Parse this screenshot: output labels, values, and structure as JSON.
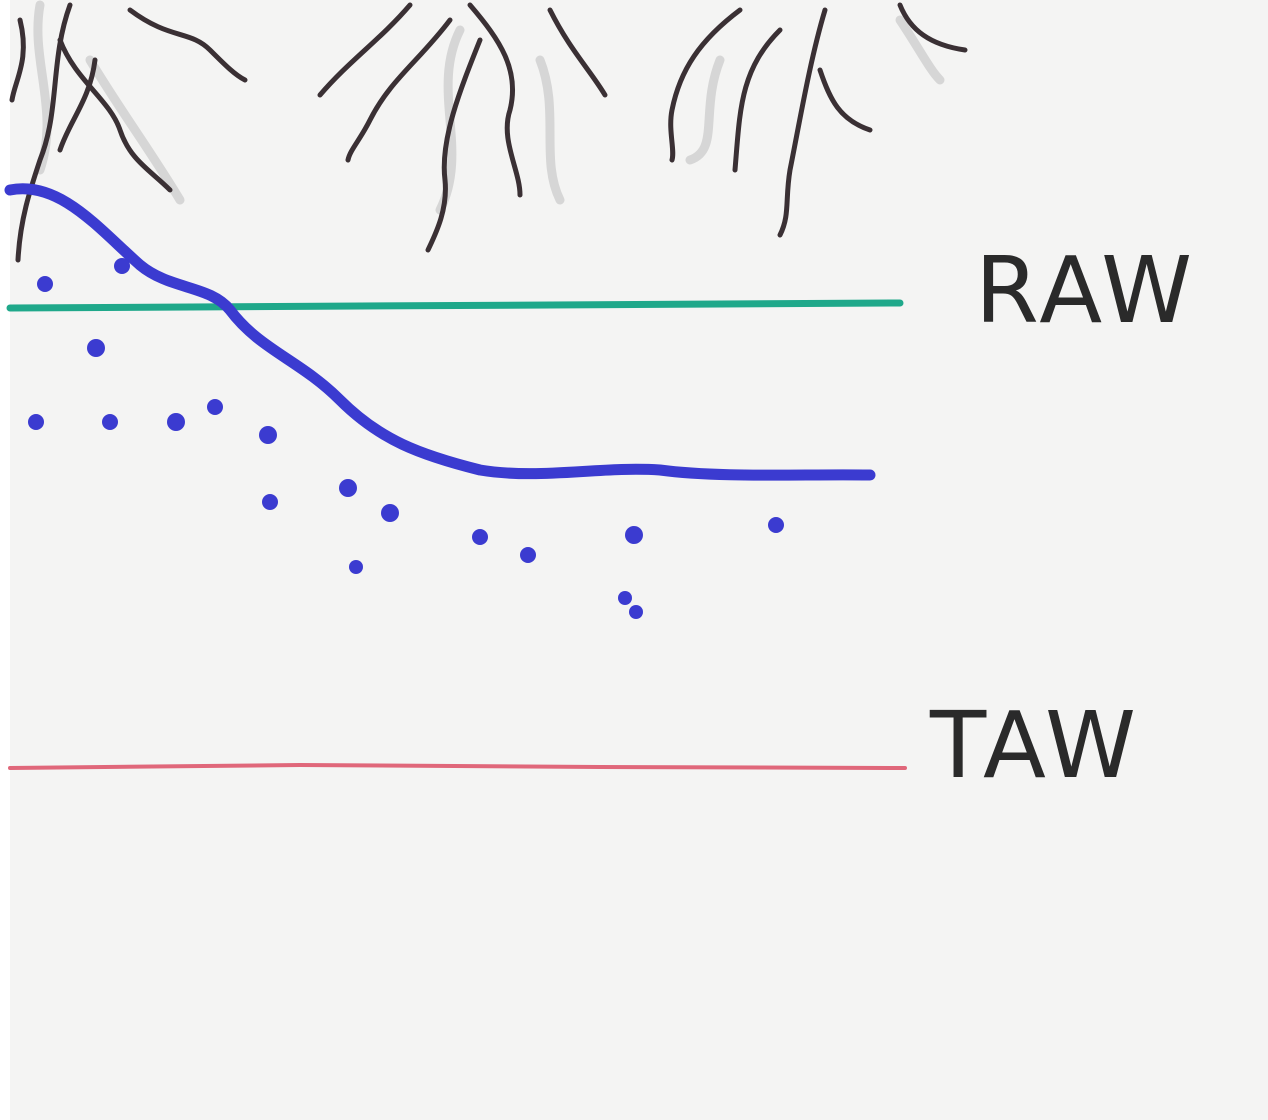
{
  "lines": [
    {
      "label": "RAW"
    },
    {
      "label": "TAW"
    }
  ]
}
